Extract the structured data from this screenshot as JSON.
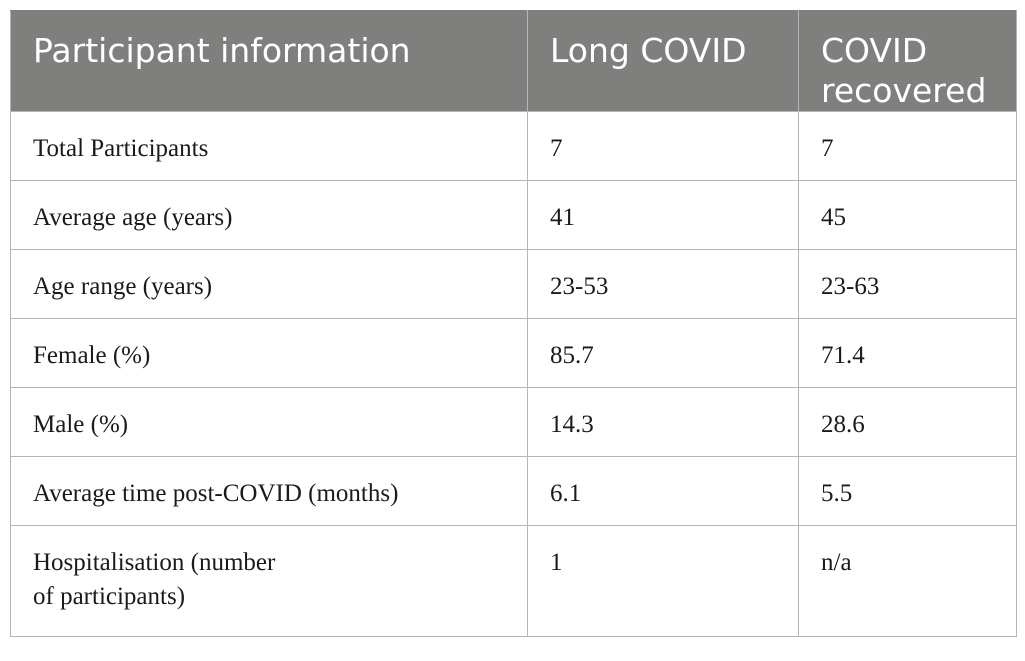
{
  "table": {
    "headers": [
      "Participant information",
      "Long\nCOVID",
      "COVID\nrecovered"
    ],
    "rows": [
      [
        "Total Participants",
        "7",
        "7"
      ],
      [
        "Average age (years)",
        "41",
        "45"
      ],
      [
        "Age range (years)",
        "23-53",
        "23-63"
      ],
      [
        "Female (%)",
        "85.7",
        "71.4"
      ],
      [
        "Male (%)",
        "14.3",
        "28.6"
      ],
      [
        "Average time post-COVID (months)",
        "6.1",
        "5.5"
      ],
      [
        "Hospitalisation (number\nof participants)",
        "1",
        "n/a"
      ]
    ],
    "header_bg": "#7f7f7e",
    "header_text_color": "#ffffff",
    "border_color": "#b5b5b5"
  }
}
